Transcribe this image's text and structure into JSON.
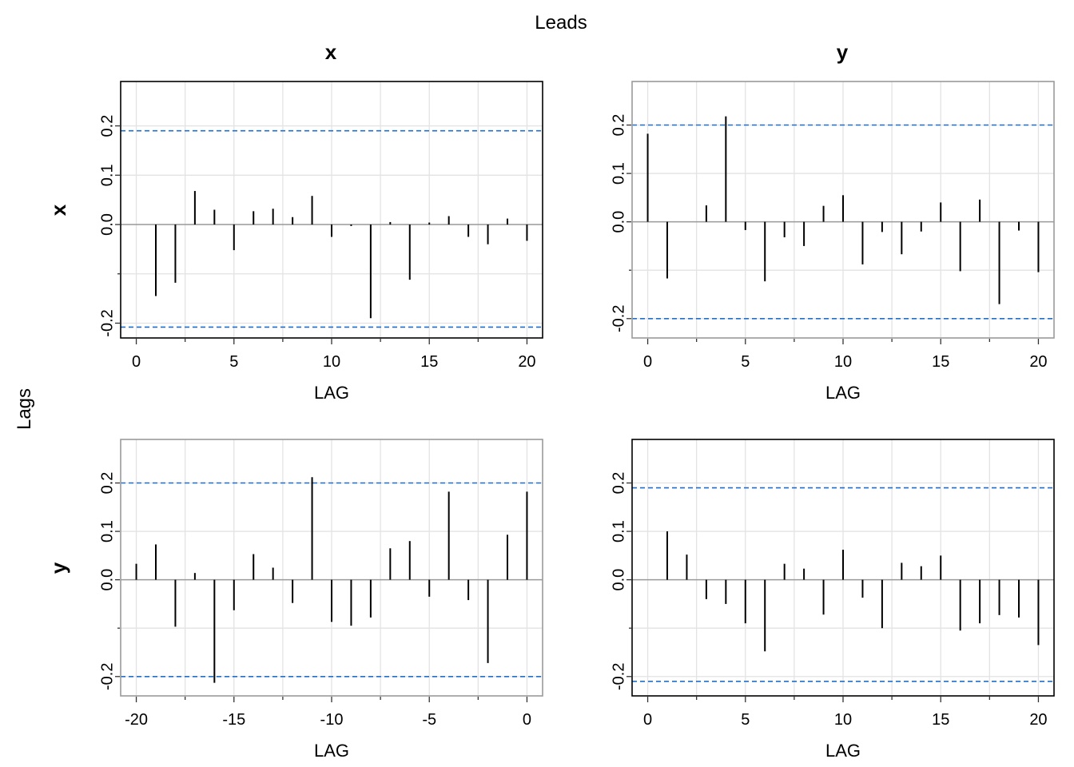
{
  "figure": {
    "top_label": "Leads",
    "side_label": "Lags",
    "col_headers": [
      "x",
      "y"
    ],
    "row_headers": [
      "x",
      "y"
    ]
  },
  "style": {
    "bar_color": "#000000",
    "band_color": "#1f6fd1",
    "grid_color": "#e3e3e3",
    "zero_line_color": "#9a9a9a",
    "frame_color_diag": "#000000",
    "frame_color_offdiag": "#9a9a9a"
  },
  "chart_data": [
    {
      "type": "bar",
      "panel": "x-x",
      "xlabel": "LAG",
      "ylabel": "x",
      "title": "x",
      "x": [
        1,
        2,
        3,
        4,
        5,
        6,
        7,
        8,
        9,
        10,
        11,
        12,
        13,
        14,
        15,
        16,
        17,
        18,
        19,
        20
      ],
      "values": [
        -0.145,
        -0.118,
        0.068,
        0.03,
        -0.052,
        0.027,
        0.032,
        0.015,
        0.058,
        -0.025,
        -0.003,
        -0.19,
        0.005,
        -0.112,
        0.004,
        0.017,
        -0.025,
        -0.04,
        0.012,
        -0.033
      ],
      "conf_upper": 0.19,
      "conf_lower": -0.208,
      "xlim": [
        -0.8,
        20.8
      ],
      "ylim": [
        -0.23,
        0.29
      ],
      "xticks": [
        0,
        5,
        10,
        15,
        20
      ],
      "yticks": [
        -0.2,
        0.0,
        0.1,
        0.2
      ],
      "ytick_labels": [
        "-0.2",
        "0.0",
        "0.1",
        "0.2"
      ],
      "grid": true
    },
    {
      "type": "bar",
      "panel": "x-y",
      "xlabel": "LAG",
      "title": "y",
      "x": [
        0,
        1,
        3,
        4,
        5,
        6,
        7,
        8,
        9,
        10,
        11,
        12,
        13,
        14,
        15,
        16,
        17,
        18,
        19,
        20
      ],
      "values": [
        0.182,
        -0.117,
        0.034,
        0.218,
        -0.017,
        -0.123,
        -0.032,
        -0.05,
        0.033,
        0.055,
        -0.088,
        -0.021,
        -0.067,
        -0.02,
        0.04,
        -0.102,
        0.046,
        -0.17,
        -0.018,
        -0.104
      ],
      "conf_upper": 0.2,
      "conf_lower": -0.2,
      "xlim": [
        -0.8,
        20.8
      ],
      "ylim": [
        -0.24,
        0.29
      ],
      "xticks": [
        0,
        5,
        10,
        15,
        20
      ],
      "yticks": [
        -0.2,
        0.0,
        0.1,
        0.2
      ],
      "ytick_labels": [
        "-0.2",
        "0.0",
        "0.1",
        "0.2"
      ],
      "grid": true
    },
    {
      "type": "bar",
      "panel": "y-x",
      "xlabel": "LAG",
      "ylabel": "y",
      "x": [
        -20,
        -19,
        -18,
        -17,
        -16,
        -15,
        -14,
        -13,
        -12,
        -11,
        -10,
        -9,
        -8,
        -7,
        -6,
        -5,
        -4,
        -3,
        -2,
        -1,
        0
      ],
      "values": [
        0.033,
        0.073,
        -0.097,
        0.014,
        -0.213,
        -0.063,
        0.053,
        0.025,
        -0.048,
        0.212,
        -0.087,
        -0.095,
        -0.078,
        0.065,
        0.08,
        -0.035,
        0.182,
        -0.042,
        -0.172,
        0.093,
        0.182
      ],
      "conf_upper": 0.2,
      "conf_lower": -0.2,
      "xlim": [
        -20.8,
        0.8
      ],
      "ylim": [
        -0.24,
        0.29
      ],
      "xticks": [
        -20,
        -15,
        -10,
        -5,
        0
      ],
      "yticks": [
        -0.2,
        0.0,
        0.1,
        0.2
      ],
      "ytick_labels": [
        "-0.2",
        "0.0",
        "0.1",
        "0.2"
      ],
      "grid": true
    },
    {
      "type": "bar",
      "panel": "y-y",
      "xlabel": "LAG",
      "x": [
        1,
        2,
        3,
        4,
        5,
        6,
        7,
        8,
        9,
        10,
        11,
        12,
        13,
        14,
        15,
        16,
        17,
        18,
        19,
        20
      ],
      "values": [
        0.1,
        0.052,
        -0.04,
        -0.05,
        -0.09,
        -0.148,
        0.033,
        0.023,
        -0.072,
        0.062,
        -0.037,
        -0.1,
        0.035,
        0.028,
        0.05,
        -0.105,
        -0.09,
        -0.073,
        -0.078,
        -0.135
      ],
      "conf_upper": 0.19,
      "conf_lower": -0.21,
      "xlim": [
        -0.8,
        20.8
      ],
      "ylim": [
        -0.24,
        0.29
      ],
      "xticks": [
        0,
        5,
        10,
        15,
        20
      ],
      "yticks": [
        -0.2,
        0.0,
        0.1,
        0.2
      ],
      "ytick_labels": [
        "-0.2",
        "0.0",
        "0.1",
        "0.2"
      ],
      "grid": true
    }
  ]
}
